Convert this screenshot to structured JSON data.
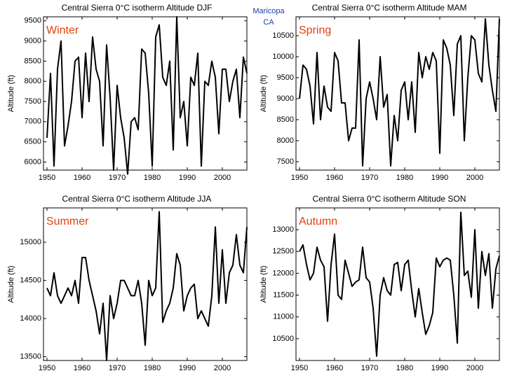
{
  "annotation": {
    "lines": [
      "Maricopa",
      "CA"
    ]
  },
  "chart_data": [
    {
      "type": "line",
      "title": "Central Sierra 0°C isotherm Altitude DJF",
      "label": "Winter",
      "ylabel": "Altitude (ft)",
      "x": [
        1950,
        1951,
        1952,
        1953,
        1954,
        1955,
        1956,
        1957,
        1958,
        1959,
        1960,
        1961,
        1962,
        1963,
        1964,
        1965,
        1966,
        1967,
        1968,
        1969,
        1970,
        1971,
        1972,
        1973,
        1974,
        1975,
        1976,
        1977,
        1978,
        1979,
        1980,
        1981,
        1982,
        1983,
        1984,
        1985,
        1986,
        1987,
        1988,
        1989,
        1990,
        1991,
        1992,
        1993,
        1994,
        1995,
        1996,
        1997,
        1998,
        1999,
        2000,
        2001,
        2002,
        2003,
        2004,
        2005,
        2006,
        2007
      ],
      "values": [
        6600,
        8200,
        5900,
        8300,
        9000,
        6400,
        6900,
        7500,
        8500,
        8600,
        7100,
        8700,
        7500,
        9100,
        8300,
        8000,
        6400,
        8900,
        7600,
        5800,
        7900,
        7100,
        6600,
        5700,
        7000,
        7100,
        6800,
        8800,
        8700,
        7700,
        5900,
        9100,
        9400,
        8100,
        7900,
        8500,
        6300,
        9600,
        7100,
        7500,
        6400,
        8100,
        7900,
        8700,
        5900,
        8000,
        7900,
        8500,
        8100,
        6700,
        8300,
        8300,
        7500,
        8000,
        8300,
        7100,
        8600,
        8200
      ],
      "color": "#000000",
      "xlim": [
        1949,
        2007
      ],
      "xticks": [
        1950,
        1960,
        1970,
        1980,
        1990,
        2000
      ],
      "ylim": [
        5800,
        9600
      ],
      "yticks": [
        6000,
        6500,
        7000,
        7500,
        8000,
        8500,
        9000,
        9500
      ]
    },
    {
      "type": "line",
      "title": "Central Sierra 0°C isotherm Altitude MAM",
      "label": "Spring",
      "ylabel": "Altitude (ft)",
      "x": [
        1950,
        1951,
        1952,
        1953,
        1954,
        1955,
        1956,
        1957,
        1958,
        1959,
        1960,
        1961,
        1962,
        1963,
        1964,
        1965,
        1966,
        1967,
        1968,
        1969,
        1970,
        1971,
        1972,
        1973,
        1974,
        1975,
        1976,
        1977,
        1978,
        1979,
        1980,
        1981,
        1982,
        1983,
        1984,
        1985,
        1986,
        1987,
        1988,
        1989,
        1990,
        1991,
        1992,
        1993,
        1994,
        1995,
        1996,
        1997,
        1998,
        1999,
        2000,
        2001,
        2002,
        2003,
        2004,
        2005,
        2006,
        2007
      ],
      "values": [
        9000,
        9800,
        9700,
        9300,
        8400,
        10100,
        8500,
        9300,
        8800,
        8700,
        10100,
        9900,
        8900,
        8900,
        8000,
        8300,
        8300,
        10400,
        7400,
        9000,
        9400,
        9000,
        8500,
        10000,
        8800,
        9100,
        7400,
        8600,
        8000,
        9200,
        9400,
        8500,
        9400,
        8200,
        10100,
        9500,
        10000,
        9700,
        10100,
        9900,
        7700,
        10400,
        10200,
        9800,
        8600,
        10300,
        10500,
        8000,
        9500,
        10500,
        10400,
        9600,
        9400,
        10900,
        9800,
        9200,
        8700,
        10900
      ],
      "color": "#000000",
      "xlim": [
        1949,
        2007
      ],
      "xticks": [
        1950,
        1960,
        1970,
        1980,
        1990,
        2000
      ],
      "ylim": [
        7300,
        10950
      ],
      "yticks": [
        7500,
        8000,
        8500,
        9000,
        9500,
        10000,
        10500
      ]
    },
    {
      "type": "line",
      "title": "Central Sierra 0°C isotherm Altitude JJA",
      "label": "Summer",
      "ylabel": "Altitude (ft)",
      "x": [
        1950,
        1951,
        1952,
        1953,
        1954,
        1955,
        1956,
        1957,
        1958,
        1959,
        1960,
        1961,
        1962,
        1963,
        1964,
        1965,
        1966,
        1967,
        1968,
        1969,
        1970,
        1971,
        1972,
        1973,
        1974,
        1975,
        1976,
        1977,
        1978,
        1979,
        1980,
        1981,
        1982,
        1983,
        1984,
        1985,
        1986,
        1987,
        1988,
        1989,
        1990,
        1991,
        1992,
        1993,
        1994,
        1995,
        1996,
        1997,
        1998,
        1999,
        2000,
        2001,
        2002,
        2003,
        2004,
        2005,
        2006,
        2007
      ],
      "values": [
        14400,
        14300,
        14600,
        14300,
        14200,
        14300,
        14400,
        14300,
        14500,
        14200,
        14800,
        14800,
        14500,
        14300,
        14100,
        13800,
        14200,
        13450,
        14300,
        14000,
        14200,
        14500,
        14500,
        14400,
        14300,
        14300,
        14500,
        14200,
        13650,
        14500,
        14300,
        14400,
        15400,
        13950,
        14100,
        14200,
        14400,
        14850,
        14700,
        14100,
        14300,
        14400,
        14450,
        14000,
        14100,
        14000,
        13900,
        14300,
        15200,
        14200,
        14900,
        14200,
        14600,
        14700,
        15100,
        14700,
        14600,
        15200
      ],
      "color": "#000000",
      "xlim": [
        1949,
        2007
      ],
      "xticks": [
        1950,
        1960,
        1970,
        1980,
        1990,
        2000
      ],
      "ylim": [
        13450,
        15450
      ],
      "yticks": [
        13500,
        14000,
        14500,
        15000
      ]
    },
    {
      "type": "line",
      "title": "Central Sierra 0°C isotherm Altitude SON",
      "label": "Autumn",
      "ylabel": "Altitude (ft)",
      "x": [
        1950,
        1951,
        1952,
        1953,
        1954,
        1955,
        1956,
        1957,
        1958,
        1959,
        1960,
        1961,
        1962,
        1963,
        1964,
        1965,
        1966,
        1967,
        1968,
        1969,
        1970,
        1971,
        1972,
        1973,
        1974,
        1975,
        1976,
        1977,
        1978,
        1979,
        1980,
        1981,
        1982,
        1983,
        1984,
        1985,
        1986,
        1987,
        1988,
        1989,
        1990,
        1991,
        1992,
        1993,
        1994,
        1995,
        1996,
        1997,
        1998,
        1999,
        2000,
        2001,
        2002,
        2003,
        2004,
        2005,
        2006,
        2007
      ],
      "values": [
        12500,
        12650,
        12200,
        11850,
        12000,
        12600,
        12300,
        12150,
        10900,
        12200,
        12900,
        11500,
        11400,
        12300,
        12000,
        11700,
        11800,
        11850,
        12600,
        11900,
        11800,
        11200,
        10100,
        11500,
        11900,
        11600,
        11500,
        12200,
        12250,
        11600,
        12200,
        12300,
        11600,
        11000,
        11650,
        11100,
        10600,
        10800,
        11100,
        12350,
        12150,
        12300,
        12350,
        12300,
        11500,
        10400,
        13400,
        11950,
        12050,
        11450,
        13000,
        11200,
        12500,
        11950,
        12450,
        11200,
        12100,
        12400
      ],
      "color": "#000000",
      "xlim": [
        1949,
        2007
      ],
      "xticks": [
        1950,
        1960,
        1970,
        1980,
        1990,
        2000
      ],
      "ylim": [
        10000,
        13500
      ],
      "yticks": [
        10500,
        11000,
        11500,
        12000,
        12500,
        13000
      ]
    }
  ]
}
